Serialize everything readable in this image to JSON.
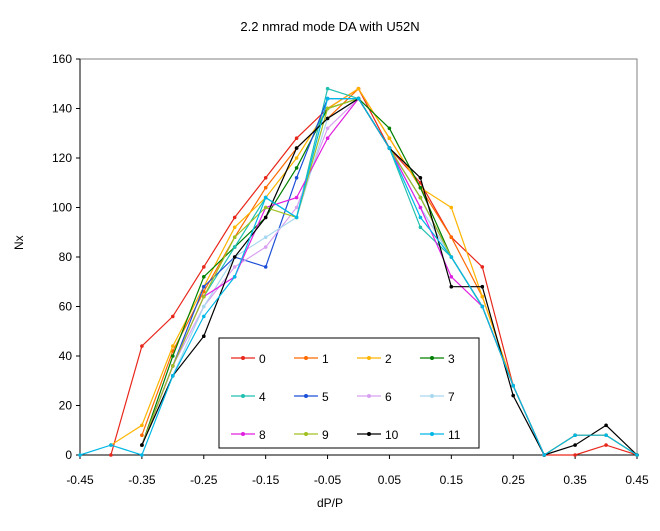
{
  "chart_data": {
    "type": "line",
    "title": "2.2 nmrad mode DA with U52N",
    "xlabel": "dP/P",
    "ylabel": "Nx",
    "xlim": [
      -0.45,
      0.45
    ],
    "ylim": [
      0,
      160
    ],
    "xticks": [
      "-0.45",
      "-0.35",
      "-0.25",
      "-0.15",
      "-0.05",
      "0.05",
      "0.15",
      "0.25",
      "0.35",
      "0.45"
    ],
    "yticks": [
      "0",
      "20",
      "40",
      "60",
      "80",
      "100",
      "120",
      "140",
      "160"
    ],
    "grid": false,
    "legend_position": "bottom-center",
    "series": [
      {
        "name": "0",
        "color": "#e8271b",
        "x": [
          -0.4,
          -0.35,
          -0.3,
          -0.25,
          -0.2,
          -0.15,
          -0.1,
          -0.05,
          0.0,
          0.05,
          0.1,
          0.15,
          0.2,
          0.25,
          0.3,
          0.35,
          0.4,
          0.45
        ],
        "y": [
          0,
          44,
          56,
          76,
          96,
          112,
          128,
          140,
          148,
          124,
          110,
          88,
          76,
          28,
          0,
          0,
          4,
          0
        ]
      },
      {
        "name": "1",
        "color": "#ff6a00",
        "x": [
          -0.35,
          -0.3,
          -0.25,
          -0.2,
          -0.15,
          -0.1,
          -0.05,
          0.0,
          0.05,
          0.1,
          0.15,
          0.2,
          0.25,
          0.3,
          0.35,
          0.4,
          0.45
        ],
        "y": [
          8,
          42,
          66,
          88,
          108,
          124,
          136,
          148,
          128,
          108,
          88,
          64,
          28,
          0,
          8,
          8,
          0
        ]
      },
      {
        "name": "2",
        "color": "#ffb400",
        "x": [
          -0.4,
          -0.35,
          -0.3,
          -0.25,
          -0.2,
          -0.15,
          -0.1,
          -0.05,
          0.0,
          0.05,
          0.1,
          0.15,
          0.2,
          0.25,
          0.3,
          0.35,
          0.4,
          0.45
        ],
        "y": [
          4,
          12,
          44,
          68,
          92,
          104,
          120,
          140,
          148,
          128,
          108,
          100,
          64,
          28,
          0,
          8,
          8,
          0
        ]
      },
      {
        "name": "3",
        "color": "#008000",
        "x": [
          -0.35,
          -0.3,
          -0.25,
          -0.2,
          -0.15,
          -0.1,
          -0.05,
          0.0,
          0.05,
          0.1,
          0.15,
          0.2,
          0.25,
          0.3
        ],
        "y": [
          4,
          40,
          72,
          84,
          96,
          116,
          140,
          144,
          132,
          108,
          80,
          60,
          28,
          0
        ]
      },
      {
        "name": "4",
        "color": "#20c0b0",
        "x": [
          -0.35,
          -0.3,
          -0.25,
          -0.2,
          -0.15,
          -0.1,
          -0.05,
          0.0,
          0.05,
          0.1,
          0.15,
          0.2,
          0.25,
          0.3
        ],
        "y": [
          4,
          36,
          64,
          84,
          104,
          96,
          148,
          144,
          124,
          92,
          80,
          60,
          28,
          0
        ]
      },
      {
        "name": "5",
        "color": "#1c4fd8",
        "x": [
          -0.35,
          -0.3,
          -0.25,
          -0.2,
          -0.15,
          -0.1,
          -0.05,
          0.0,
          0.05,
          0.1,
          0.15,
          0.2,
          0.25,
          0.3
        ],
        "y": [
          4,
          36,
          68,
          80,
          76,
          112,
          144,
          144,
          124,
          104,
          80,
          60,
          28,
          0
        ]
      },
      {
        "name": "6",
        "color": "#d8a0f0",
        "x": [
          -0.35,
          -0.3,
          -0.25,
          -0.2,
          -0.15,
          -0.1,
          -0.05,
          0.0,
          0.05,
          0.1,
          0.15,
          0.2,
          0.25,
          0.3
        ],
        "y": [
          4,
          36,
          60,
          76,
          84,
          100,
          132,
          144,
          124,
          100,
          80,
          60,
          28,
          0
        ]
      },
      {
        "name": "7",
        "color": "#a8d8f0",
        "x": [
          -0.35,
          -0.3,
          -0.25,
          -0.2,
          -0.15,
          -0.1,
          -0.05,
          0.0,
          0.05,
          0.1,
          0.15,
          0.2,
          0.25,
          0.3
        ],
        "y": [
          4,
          32,
          60,
          80,
          88,
          96,
          136,
          144,
          124,
          100,
          80,
          60,
          28,
          0
        ]
      },
      {
        "name": "8",
        "color": "#e020e0",
        "x": [
          -0.35,
          -0.3,
          -0.25,
          -0.2,
          -0.15,
          -0.1,
          -0.05,
          0.0,
          0.05,
          0.1,
          0.15,
          0.2,
          0.25,
          0.3
        ],
        "y": [
          4,
          36,
          64,
          72,
          100,
          104,
          128,
          144,
          124,
          100,
          72,
          60,
          28,
          0
        ]
      },
      {
        "name": "9",
        "color": "#a0c020",
        "x": [
          -0.35,
          -0.3,
          -0.25,
          -0.2,
          -0.15,
          -0.1,
          -0.05,
          0.0,
          0.05,
          0.1,
          0.15,
          0.2,
          0.25,
          0.3
        ],
        "y": [
          4,
          36,
          64,
          88,
          100,
          96,
          140,
          144,
          124,
          104,
          80,
          60,
          28,
          0
        ]
      },
      {
        "name": "10",
        "color": "#000000",
        "x": [
          -0.35,
          -0.3,
          -0.25,
          -0.2,
          -0.15,
          -0.1,
          -0.05,
          0.0,
          0.05,
          0.1,
          0.15,
          0.2,
          0.25,
          0.3,
          0.35,
          0.4,
          0.45
        ],
        "y": [
          4,
          32,
          48,
          80,
          96,
          124,
          136,
          144,
          124,
          112,
          68,
          68,
          24,
          0,
          4,
          12,
          0
        ]
      },
      {
        "name": "11",
        "color": "#00b8e8",
        "x": [
          -0.45,
          -0.4,
          -0.35,
          -0.3,
          -0.25,
          -0.2,
          -0.15,
          -0.1,
          -0.05,
          0.0,
          0.05,
          0.1,
          0.15,
          0.2,
          0.25,
          0.3,
          0.35,
          0.4,
          0.45
        ],
        "y": [
          0,
          4,
          0,
          32,
          56,
          72,
          104,
          96,
          144,
          144,
          124,
          96,
          80,
          60,
          28,
          0,
          8,
          8,
          0
        ]
      }
    ]
  }
}
